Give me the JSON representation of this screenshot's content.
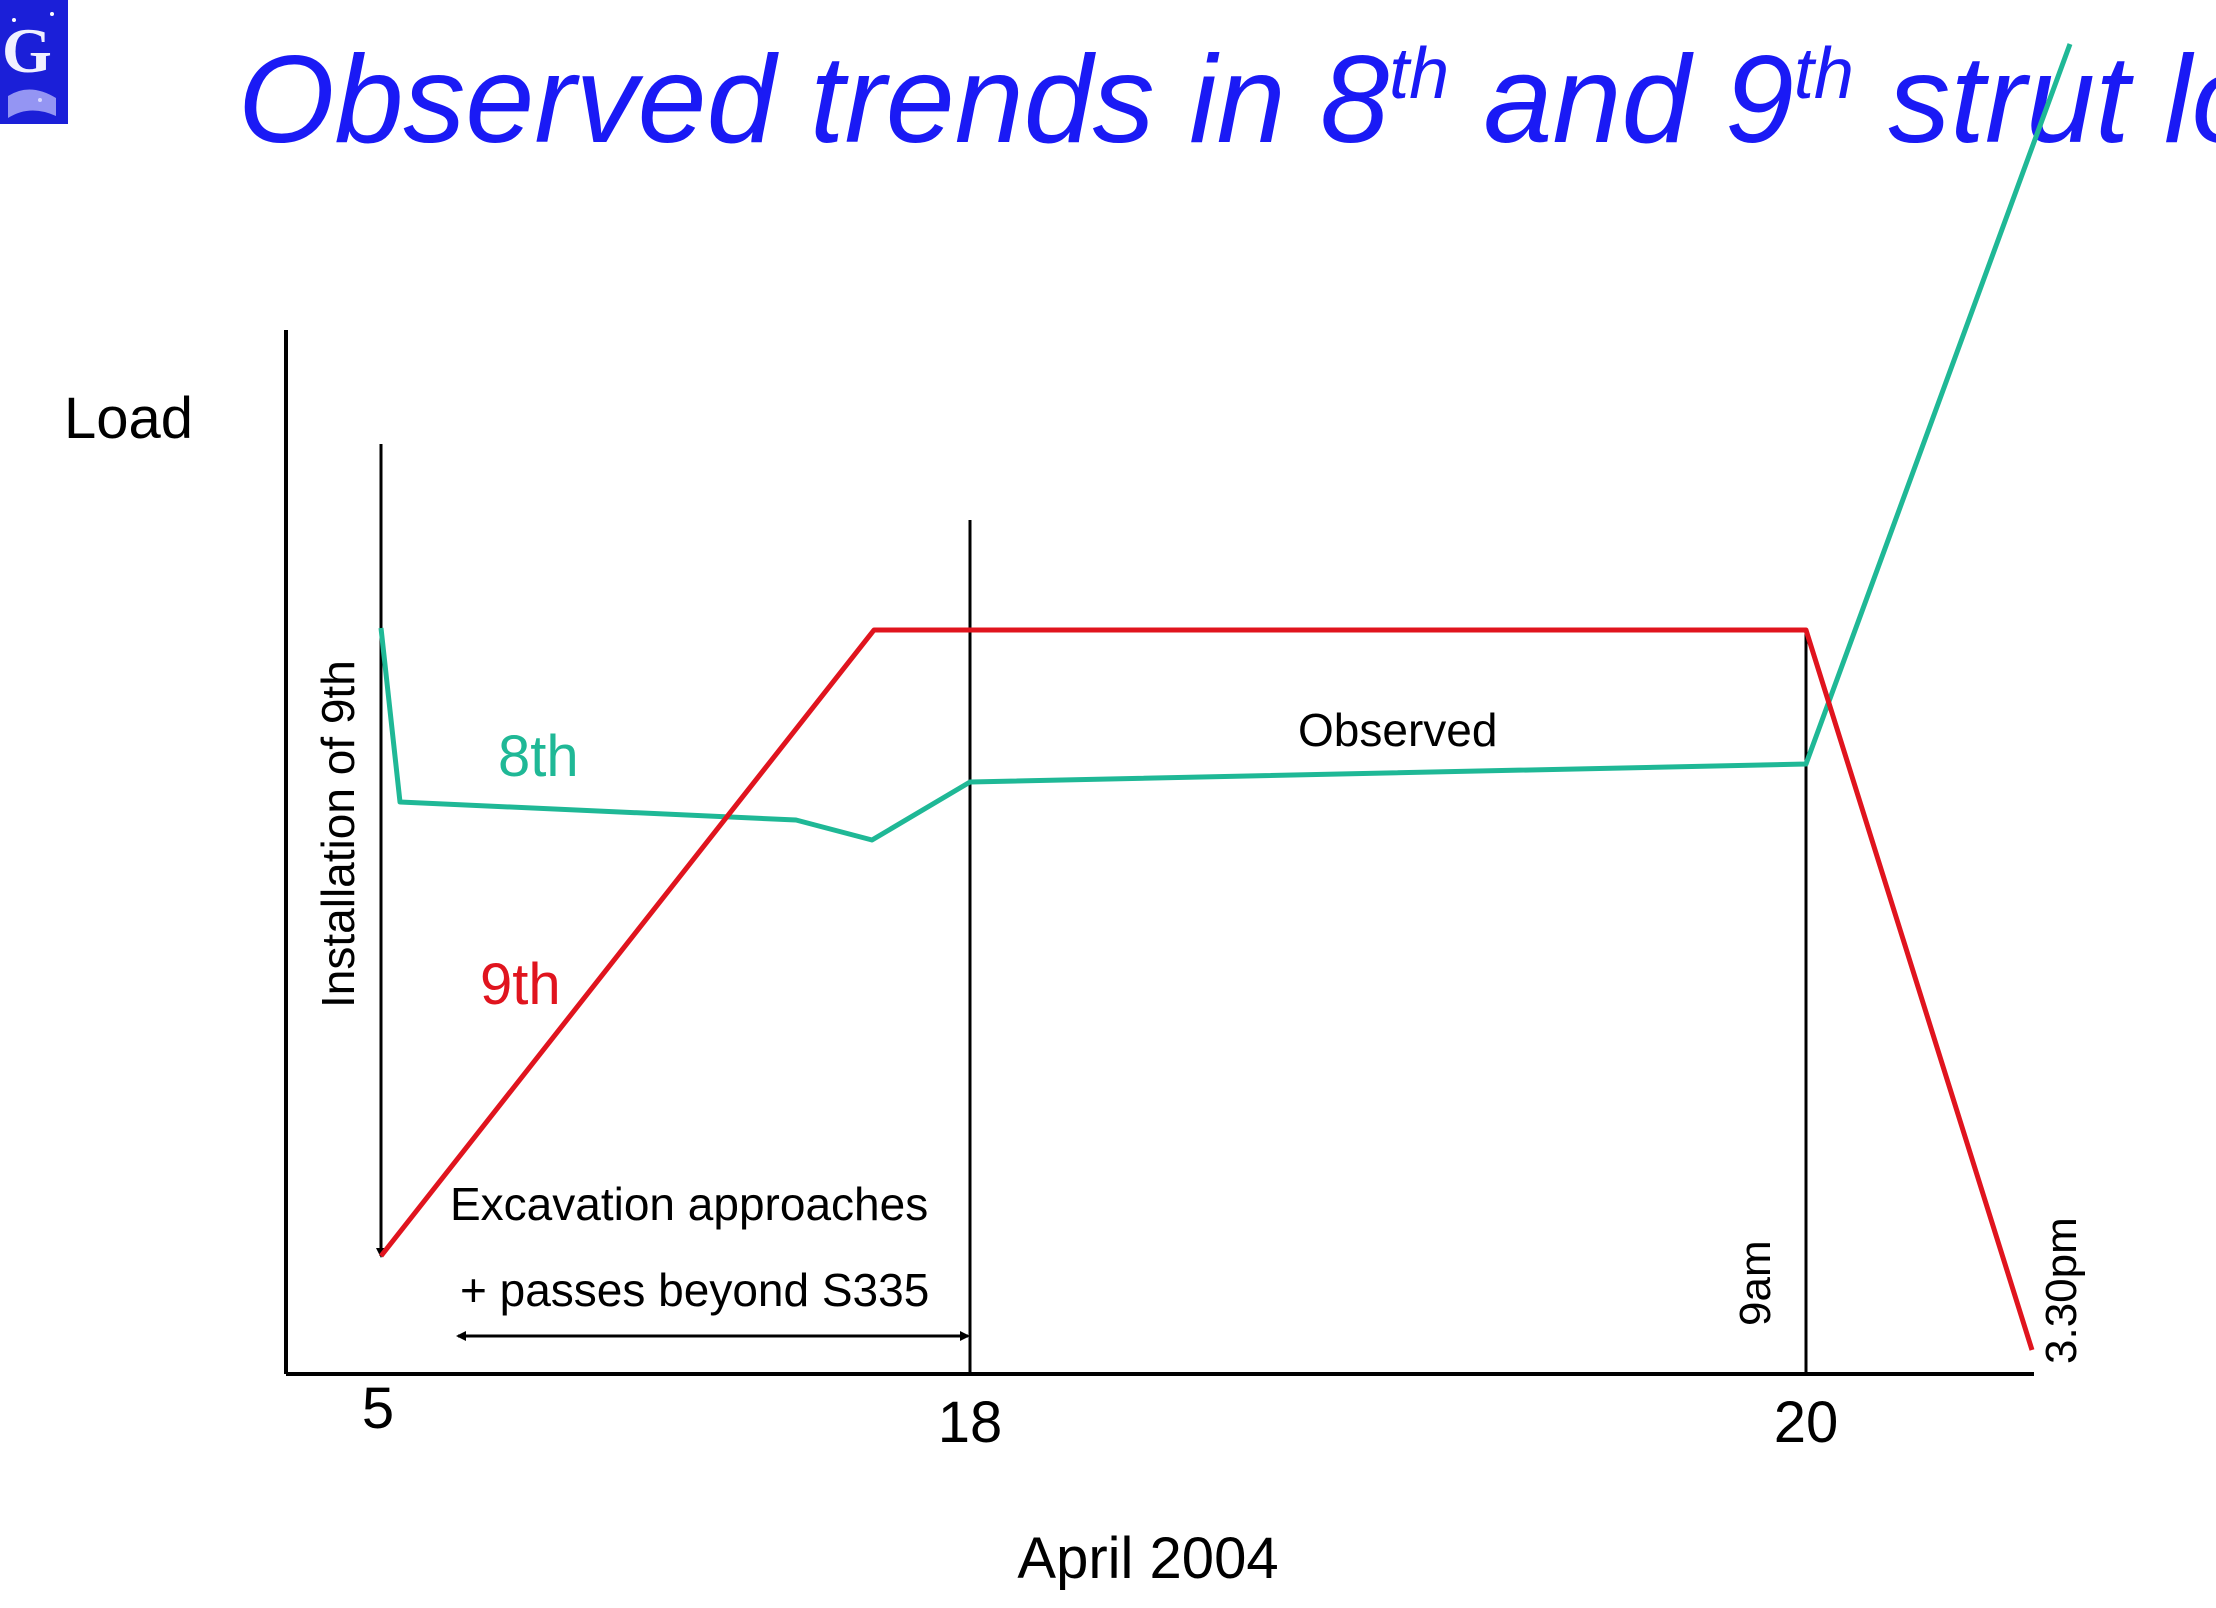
{
  "slide": {
    "title_part1": "Observed trends in 8",
    "title_sup1": "th",
    "title_part2": " and 9",
    "title_sup2": "th",
    "title_part3": " strut loads",
    "logo_letter": "G"
  },
  "colors": {
    "title": "#1a1af5",
    "strut_8th": "#1fb896",
    "strut_9th": "#e0141e",
    "axis": "#000000"
  },
  "chart_data": {
    "type": "line",
    "xlabel": "April 2004",
    "ylabel": "Load",
    "x_ticks": [
      {
        "x": 5,
        "label": "5"
      },
      {
        "x": 18,
        "label": "18"
      },
      {
        "x": 20,
        "label": "20"
      }
    ],
    "series": [
      {
        "name": "8th",
        "points": [
          [
            5,
            0.82
          ],
          [
            5.35,
            0.64
          ],
          [
            13.8,
            0.58
          ],
          [
            14.8,
            0.56
          ],
          [
            18,
            0.6
          ],
          [
            35,
            0.62
          ],
          [
            40,
            1.5
          ]
        ]
      },
      {
        "name": "9th",
        "points": [
          [
            5,
            0.12
          ],
          [
            15.9,
            0.74
          ],
          [
            18,
            0.74
          ],
          [
            35,
            0.74
          ],
          [
            39.5,
            0.02
          ]
        ]
      }
    ],
    "annotations": {
      "installation": "Installation of 9th",
      "excavation_line1": "Excavation approaches",
      "excavation_line2": "+ passes beyond S335",
      "observed": "Observed",
      "time_9am": "9am",
      "time_330pm": "3.30pm"
    },
    "grid": false,
    "legend": "inline labels"
  }
}
